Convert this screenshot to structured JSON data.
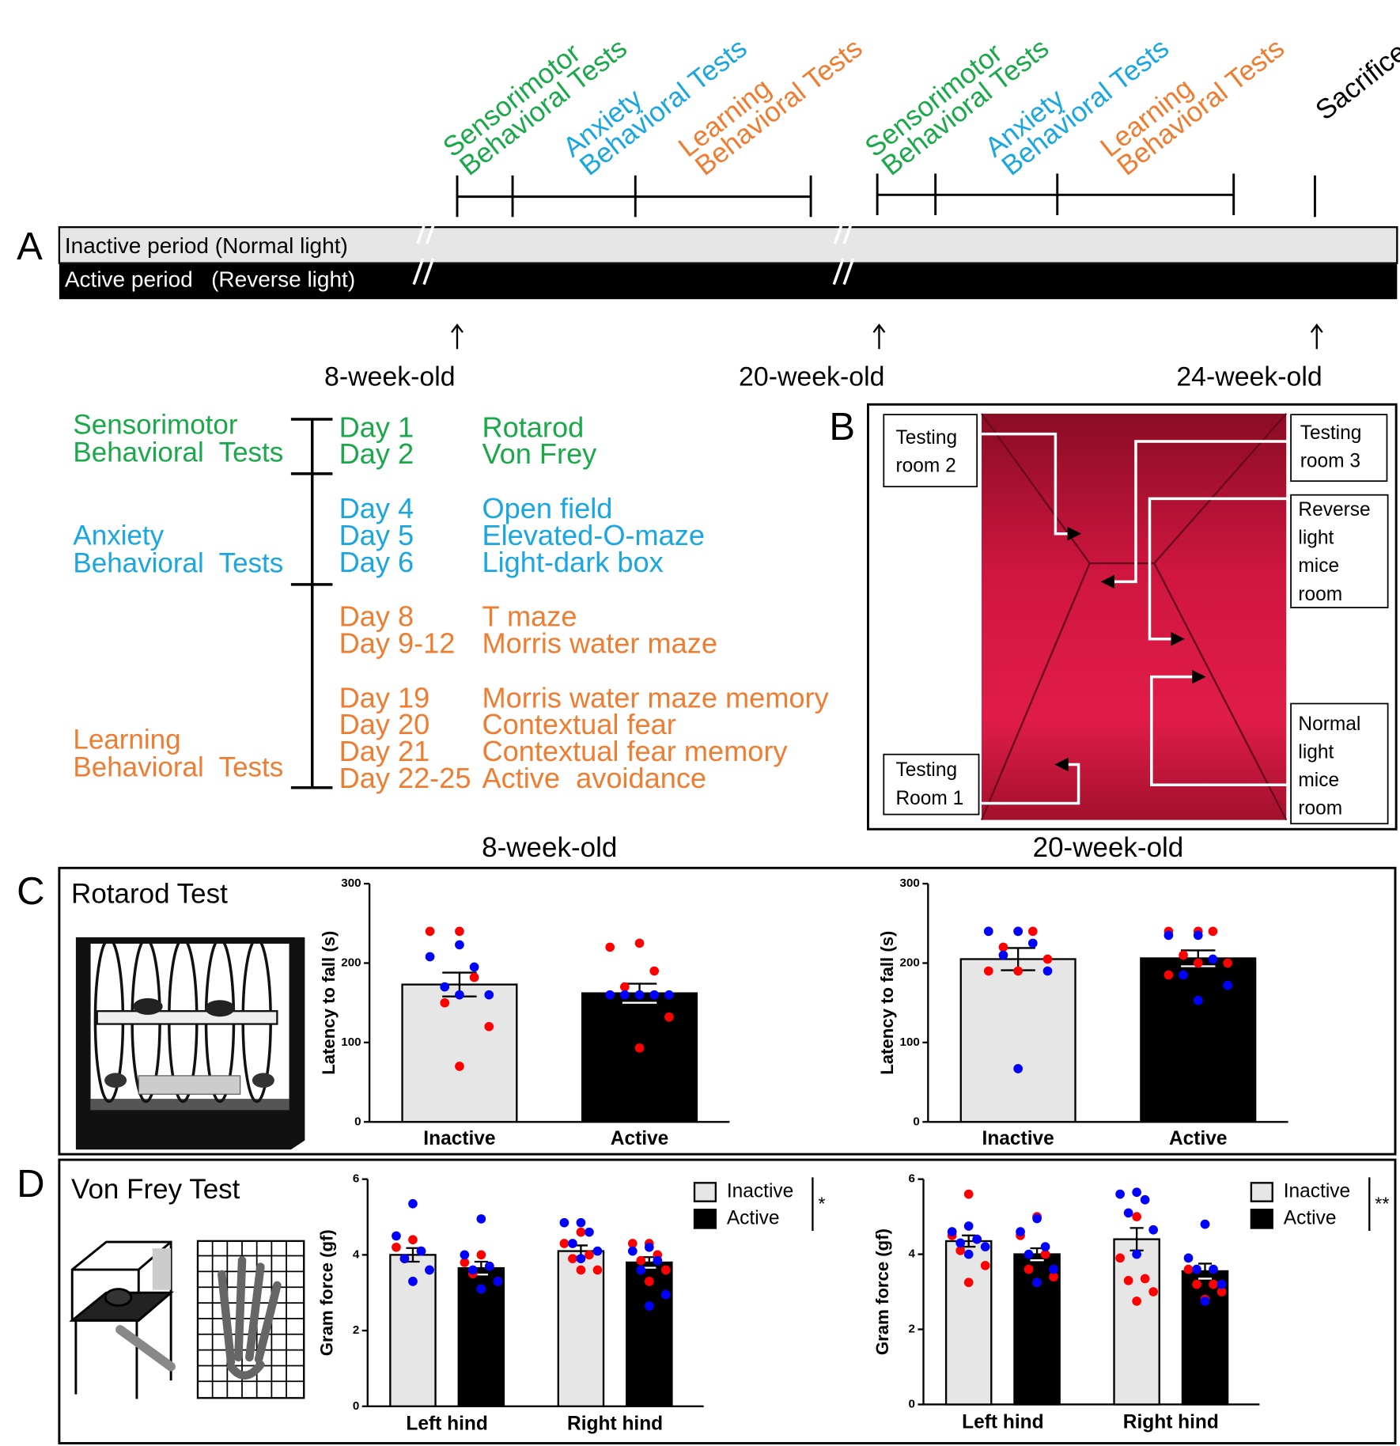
{
  "panels": [
    "A",
    "B",
    "C",
    "D"
  ],
  "timeline": {
    "groups": [
      [
        "Sensorimotor",
        "Behavioral Tests"
      ],
      [
        "Anxiety",
        "Behavioral Tests"
      ],
      [
        "Learning",
        "Behavioral Tests"
      ],
      [
        "Sensorimotor",
        "Behavioral Tests"
      ],
      [
        "Anxiety",
        "Behavioral Tests"
      ],
      [
        "Learning",
        "Behavioral Tests"
      ]
    ],
    "sacrifice": "Sacrifice",
    "inactive": "Inactive period (Normal light)",
    "active": "Active period   (Reverse light)",
    "ages": [
      "8-week-old",
      "20-week-old",
      "24-week-old"
    ]
  },
  "schedule": [
    {
      "name": [
        "Sensorimotor",
        "Behavioral  Tests"
      ],
      "rows": [
        [
          "Day 1",
          "Rotarod"
        ],
        [
          "Day 2",
          "Von Frey"
        ]
      ]
    },
    {
      "name": [
        "Anxiety",
        "Behavioral  Tests"
      ],
      "rows": [
        [
          "Day 4",
          "Open field"
        ],
        [
          "Day 5",
          "Elevated-O-maze"
        ],
        [
          "Day 6",
          "Light-dark box"
        ]
      ]
    },
    {
      "name": [
        "Learning",
        "Behavioral  Tests"
      ],
      "rows": [
        [
          "Day 8",
          "T maze"
        ],
        [
          "Day 9-12",
          "Morris water maze"
        ],
        [
          "Day 19",
          "Morris water maze memory"
        ],
        [
          "Day 20",
          "Contextual fear"
        ],
        [
          "Day 21",
          "Contextual fear memory"
        ],
        [
          "Day 22-25",
          "Active  avoidance"
        ]
      ]
    }
  ],
  "photo_labels": [
    [
      "Testing",
      "room 2"
    ],
    [
      "Testing",
      "room 3"
    ],
    [
      "Reverse",
      "light",
      "mice",
      "room"
    ],
    [
      "Normal",
      "light",
      "mice",
      "room"
    ],
    [
      "Testing",
      "Room 1"
    ]
  ],
  "rotarod_title": "Rotarod Test",
  "vonfrey_title": "Von Frey Test",
  "chart_data": [
    {
      "type": "bar",
      "title": "8-week-old",
      "ylabel": "Latency to fall (s)",
      "categories": [
        "Inactive",
        "Active"
      ],
      "values": [
        173,
        162
      ],
      "errors": [
        15,
        12
      ],
      "colors": [
        "#e6e6e6",
        "#000000"
      ],
      "dots": [
        {
          "color": "#ff0000",
          "values": [
            [
              240,
              240,
              182,
              150,
              120,
              70
            ],
            [
              225,
              220,
              190,
              170,
              132,
              93
            ]
          ]
        },
        {
          "color": "#0000ff",
          "values": [
            [
              223,
              208,
              195,
              170,
              160,
              160
            ],
            [
              160,
              160,
              160,
              160,
              160,
              160
            ]
          ]
        }
      ],
      "ylim": [
        0,
        300
      ],
      "yticks": [
        0,
        100,
        200,
        300
      ]
    },
    {
      "type": "bar",
      "title": "20-week-old",
      "ylabel": "Latency to fall (s)",
      "categories": [
        "Inactive",
        "Active"
      ],
      "values": [
        205,
        206
      ],
      "errors": [
        14,
        10
      ],
      "colors": [
        "#e6e6e6",
        "#000000"
      ],
      "dots": [
        {
          "color": "#ff0000",
          "values": [
            [
              240,
              240,
              240,
              220,
              205,
              190,
              190
            ],
            [
              240,
              240,
              240,
              210,
              200,
              200,
              185
            ]
          ]
        },
        {
          "color": "#0000ff",
          "values": [
            [
              240,
              240,
              225,
              210,
              190,
              67
            ],
            [
              235,
              235,
              205,
              185,
              172,
              153
            ]
          ]
        }
      ],
      "ylim": [
        0,
        300
      ],
      "yticks": [
        0,
        100,
        200,
        300
      ]
    },
    {
      "type": "grouped_bar",
      "ylabel": "Gram force (gf)",
      "categories": [
        "Left hind",
        "Right hind"
      ],
      "significance": "*",
      "series": [
        {
          "name": "Inactive",
          "color": "#e6e6e6",
          "values": [
            4.0,
            4.1
          ],
          "errors": [
            0.18,
            0.15
          ],
          "dots": [
            {
              "color": "#ff0000",
              "values": [
                [
                  4.4,
                  4.2,
                  4.1,
                  3.9,
                  3.6,
                  3.3
                ],
                [
                  4.6,
                  4.3,
                  4.0,
                  3.9,
                  3.6,
                  3.6
                ]
              ]
            },
            {
              "color": "#0000ff",
              "values": [
                [
                  5.35,
                  4.5,
                  4.1,
                  3.9,
                  3.6,
                  3.3
                ],
                [
                  4.85,
                  4.85,
                  4.6,
                  4.3,
                  4.1,
                  3.9
                ]
              ]
            }
          ]
        },
        {
          "name": "Active",
          "color": "#000000",
          "values": [
            3.65,
            3.8
          ],
          "errors": [
            0.17,
            0.14
          ],
          "dots": [
            {
              "color": "#ff0000",
              "values": [
                [
                  4.0,
                  3.8,
                  3.7,
                  3.5,
                  3.3,
                  3.1
                ],
                [
                  4.3,
                  4.3,
                  4.0,
                  3.85,
                  3.6,
                  3.3
                ]
              ]
            },
            {
              "color": "#0000ff",
              "values": [
                [
                  4.95,
                  4.0,
                  3.7,
                  3.6,
                  3.3,
                  3.1
                ],
                [
                  4.2,
                  4.1,
                  3.85,
                  3.6,
                  2.95,
                  2.65
                ]
              ]
            }
          ]
        }
      ],
      "ylim": [
        0,
        6
      ],
      "yticks": [
        0,
        2,
        4,
        6
      ]
    },
    {
      "type": "grouped_bar",
      "ylabel": "Gram force (gf)",
      "categories": [
        "Left hind",
        "Right hind"
      ],
      "significance": "**",
      "series": [
        {
          "name": "Inactive",
          "color": "#e6e6e6",
          "values": [
            4.35,
            4.4
          ],
          "errors": [
            0.15,
            0.3
          ],
          "dots": [
            {
              "color": "#ff0000",
              "values": [
                [
                  5.6,
                  4.5,
                  4.4,
                  4.1,
                  3.7,
                  3.25
                ],
                [
                  5.0,
                  3.9,
                  3.35,
                  3.3,
                  3.0,
                  2.75
                ]
              ]
            },
            {
              "color": "#0000ff",
              "values": [
                [
                  4.75,
                  4.6,
                  4.4,
                  4.3,
                  4.2,
                  4.0
                ],
                [
                  5.65,
                  5.6,
                  5.45,
                  5.1,
                  4.65,
                  4.0
                ]
              ]
            }
          ]
        },
        {
          "name": "Active",
          "color": "#000000",
          "values": [
            4.0,
            3.55
          ],
          "errors": [
            0.16,
            0.2
          ],
          "dots": [
            {
              "color": "#ff0000",
              "values": [
                [
                  5.0,
                  4.5,
                  4.0,
                  3.6,
                  3.4,
                  3.25
                ],
                [
                  4.8,
                  3.6,
                  3.2,
                  3.2,
                  3.0,
                  2.8
                ]
              ]
            },
            {
              "color": "#0000ff",
              "values": [
                [
                  4.95,
                  4.6,
                  4.2,
                  4.0,
                  3.6,
                  3.25
                ],
                [
                  4.8,
                  3.9,
                  3.6,
                  3.6,
                  3.2,
                  2.75
                ]
              ]
            }
          ]
        }
      ],
      "ylim": [
        0,
        6
      ],
      "yticks": [
        0,
        2,
        4,
        6
      ]
    }
  ]
}
